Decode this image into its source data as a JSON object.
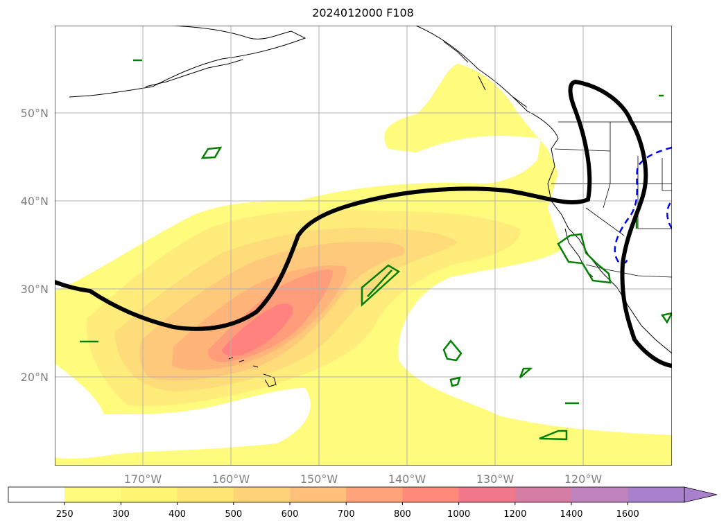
{
  "title": "2024012000 F108",
  "map": {
    "lat_labels": [
      "50°N",
      "40°N",
      "30°N",
      "20°N"
    ],
    "lon_labels": [
      "170°W",
      "160°W",
      "150°W",
      "140°W",
      "130°W",
      "120°W"
    ]
  },
  "colorbar": {
    "levels": [
      "250",
      "300",
      "400",
      "500",
      "600",
      "700",
      "800",
      "1000",
      "1200",
      "1400",
      "1600"
    ],
    "colors": [
      "#ffffff",
      "#fffb7d",
      "#fff573",
      "#ffe573",
      "#ffd478",
      "#ffc07b",
      "#ffa37a",
      "#ff8a7a",
      "#f0788a",
      "#d57ca3",
      "#bf82bf",
      "#a880cc"
    ]
  },
  "contours": {
    "jet_line_color": "#000000",
    "dashed_line_color": "#0000ff",
    "green_line_color": "#008000"
  }
}
